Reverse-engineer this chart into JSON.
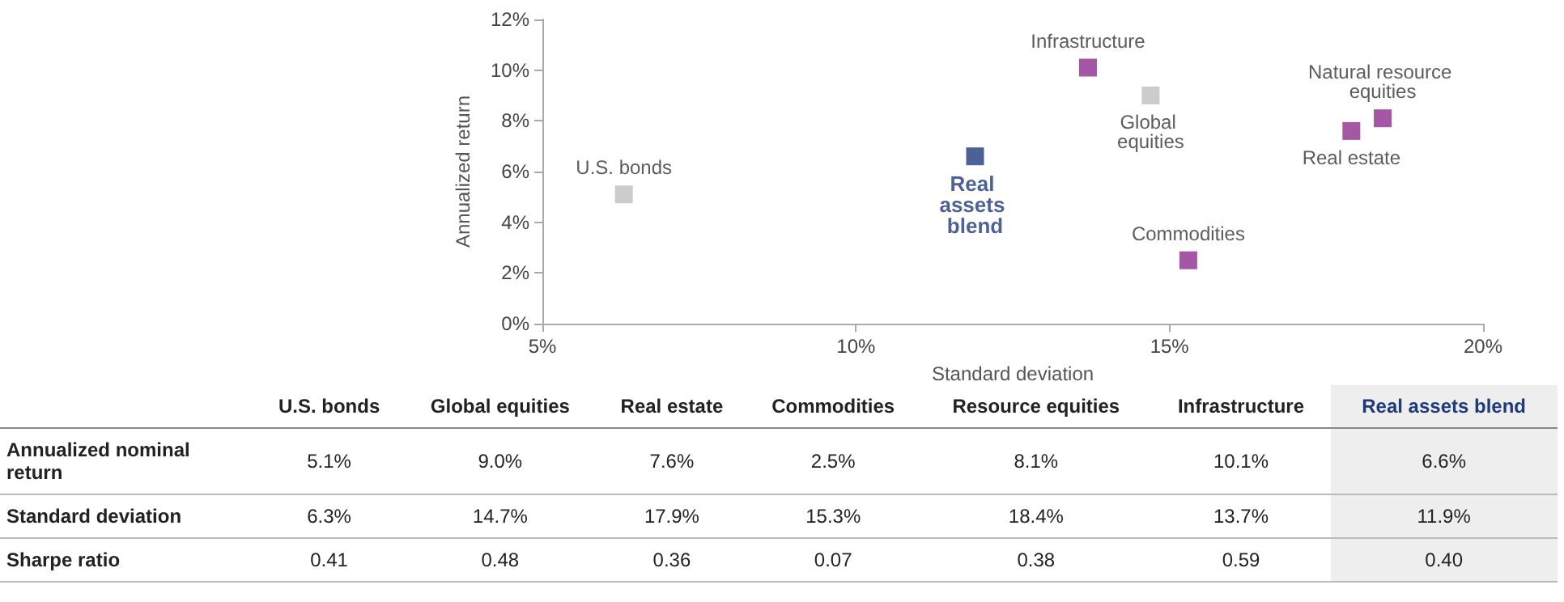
{
  "chart_data": [
    {
      "type": "scatter",
      "xlabel": "Standard deviation",
      "ylabel": "Annualized return",
      "marker": "square",
      "grid": false,
      "legend": false,
      "xlim": [
        5,
        20
      ],
      "xticks": [
        {
          "value": 5,
          "label": "5%"
        },
        {
          "value": 10,
          "label": "10%"
        },
        {
          "value": 15,
          "label": "15%"
        },
        {
          "value": 20,
          "label": "20%"
        }
      ],
      "ylim": [
        0,
        12
      ],
      "yticks": [
        {
          "value": 0,
          "label": "0%"
        },
        {
          "value": 2,
          "label": "2%"
        },
        {
          "value": 4,
          "label": "4%"
        },
        {
          "value": 6,
          "label": "6%"
        },
        {
          "value": 8,
          "label": "8%"
        },
        {
          "value": 10,
          "label": "10%"
        },
        {
          "value": 12,
          "label": "12%"
        }
      ],
      "series": [
        {
          "name": "U.S. bonds",
          "color": "#bfbfbf",
          "x": [
            6.3
          ],
          "values": [
            5.1
          ]
        },
        {
          "name": "Global equities",
          "color": "#bfbfbf",
          "x": [
            14.7
          ],
          "values": [
            9.0
          ]
        },
        {
          "name": "Real estate",
          "color": "#8e2c8e",
          "x": [
            17.9
          ],
          "values": [
            7.6
          ]
        },
        {
          "name": "Commodities",
          "color": "#8e2c8e",
          "x": [
            15.3
          ],
          "values": [
            2.5
          ]
        },
        {
          "name": "Natural resource equities",
          "color": "#8e2c8e",
          "x": [
            18.4
          ],
          "values": [
            8.1
          ]
        },
        {
          "name": "Infrastructure",
          "color": "#8e2c8e",
          "x": [
            13.7
          ],
          "values": [
            10.1
          ]
        },
        {
          "name": "Real assets blend",
          "color": "#1f3a7a",
          "x": [
            11.9
          ],
          "values": [
            6.6
          ]
        }
      ]
    },
    {
      "type": "other",
      "categories": [
        "U.S. bonds",
        "Global equities",
        "Real estate",
        "Commodities",
        "Resource equities",
        "Infrastructure",
        "Real assets blend"
      ],
      "y_categories": [
        "Annualized nominal return",
        "Standard deviation",
        "Sharpe ratio"
      ],
      "cell_labels": [
        [
          "5.1%",
          "9.0%",
          "7.6%",
          "2.5%",
          "8.1%",
          "10.1%",
          "6.6%"
        ],
        [
          "6.3%",
          "14.7%",
          "17.9%",
          "15.3%",
          "18.4%",
          "13.7%",
          "11.9%"
        ],
        [
          "0.41",
          "0.48",
          "0.36",
          "0.07",
          "0.38",
          "0.59",
          "0.40"
        ]
      ]
    }
  ]
}
